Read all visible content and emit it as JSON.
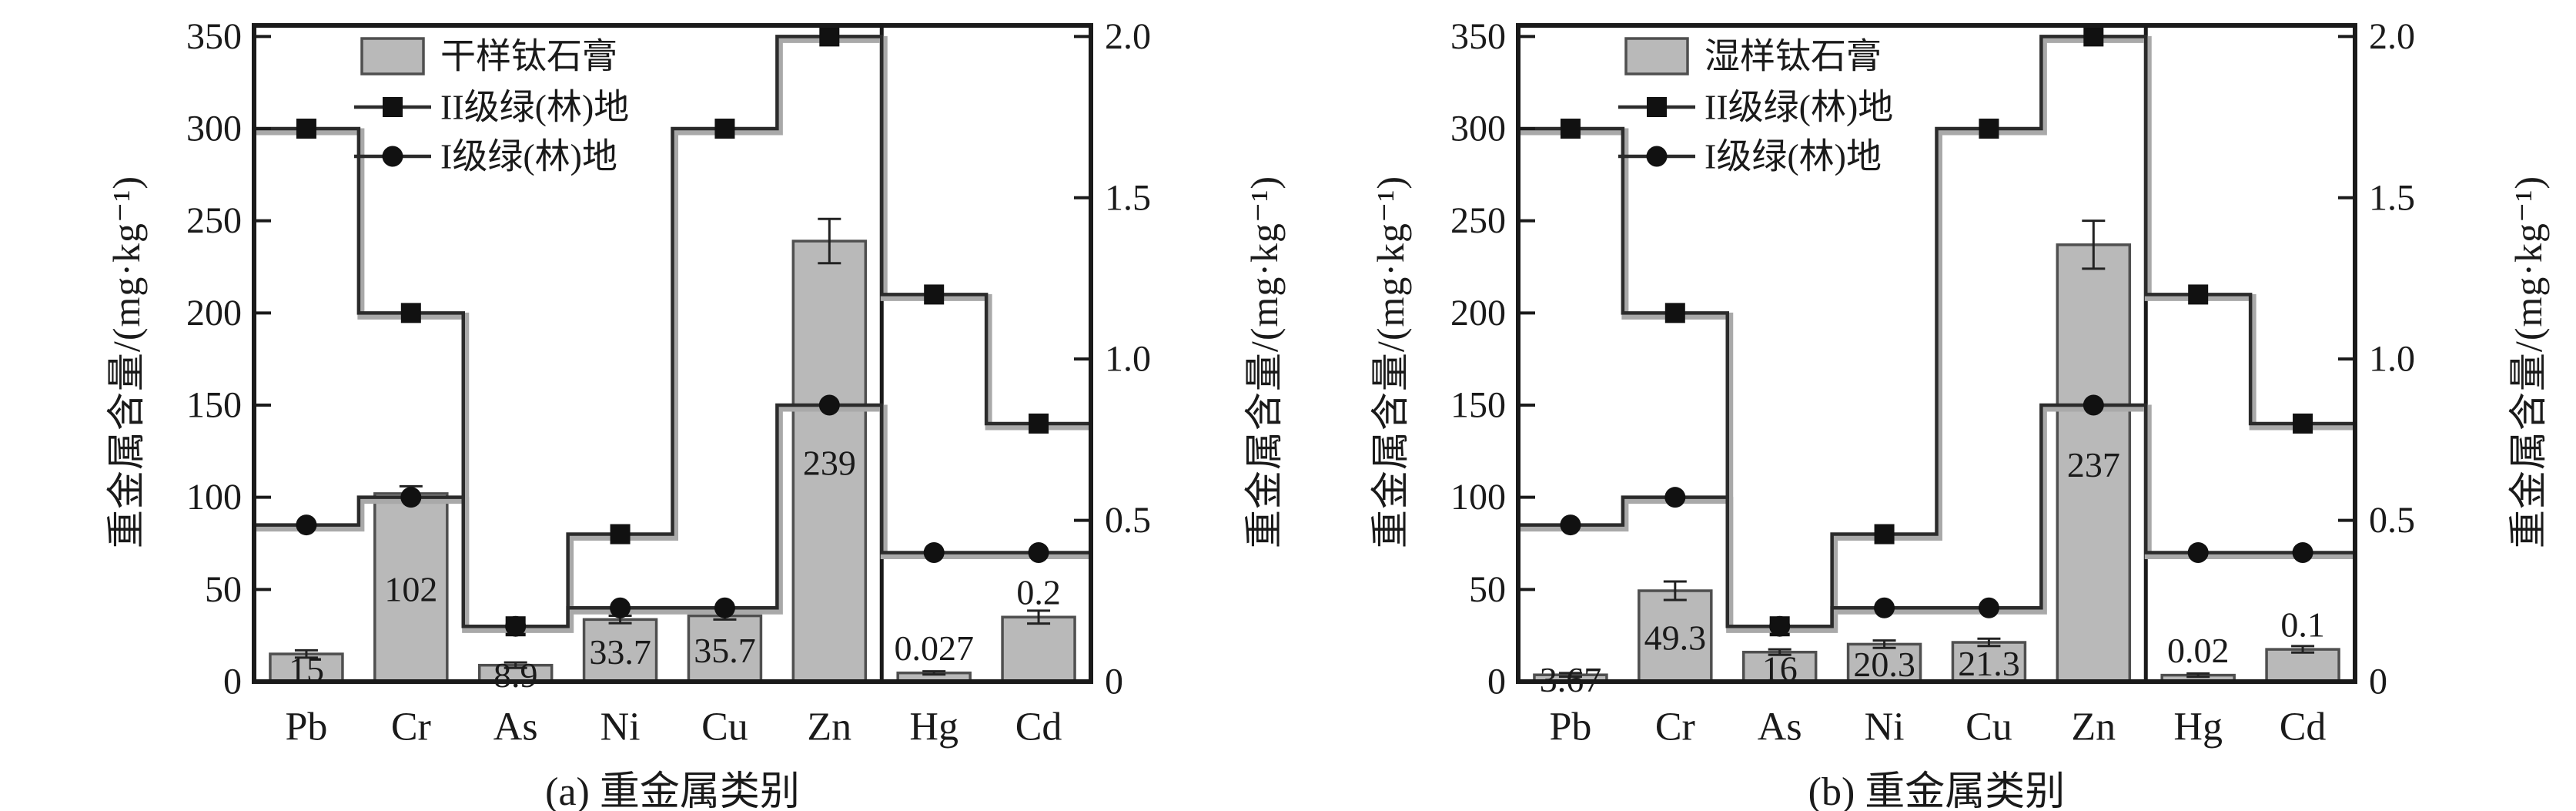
{
  "figure": {
    "background": "#ffffff",
    "ink_color": "#1a1a1a",
    "bar_fill": "#b9b9b9",
    "bar_edge": "#4f4f4f",
    "step_line_color": "#2b2b2b",
    "step_line_halo": "#a9a9a9",
    "marker_color": "#111111",
    "left_ticks": [
      "0",
      "50",
      "100",
      "150",
      "200",
      "250",
      "300",
      "350"
    ],
    "right_ticks": [
      "0",
      "0.5",
      "1.0",
      "1.5",
      "2.0"
    ],
    "right_tick_values": [
      0,
      0.5,
      1.0,
      1.5,
      2.0
    ]
  },
  "chart_data": [
    {
      "panel": "a",
      "type": "bar",
      "caption": "(a) 重金属类别",
      "xlabel": "重金属类别",
      "ylabel_left": "重金属含量/(mg·kg⁻¹)",
      "ylabel_right": "重金属含量/(mg·kg⁻¹)",
      "ylim_left": [
        0,
        350
      ],
      "ylim_right": [
        0,
        2.0
      ],
      "grid": false,
      "legend_position": "top-left",
      "categories": [
        "Pb",
        "Cr",
        "As",
        "Ni",
        "Cu",
        "Zn",
        "Hg",
        "Cd"
      ],
      "right_axis_categories": [
        "Hg",
        "Cd"
      ],
      "bars": {
        "name": "干样钛石膏",
        "values": [
          15,
          102,
          8.9,
          33.7,
          35.7,
          239,
          0.027,
          0.2
        ],
        "labels": [
          "15",
          "102",
          "8.9",
          "33.7",
          "35.7",
          "239",
          "0.027",
          "0.2"
        ],
        "errors": [
          2,
          4,
          1.5,
          2,
          2,
          12,
          0.005,
          0.02
        ]
      },
      "series": [
        {
          "name": "II级绿(林)地",
          "marker": "square",
          "values": [
            300,
            200,
            30,
            80,
            300,
            350,
            1.2,
            0.8
          ]
        },
        {
          "name": "I级绿(林)地",
          "marker": "circle",
          "values": [
            85,
            100,
            30,
            40,
            40,
            150,
            0.4,
            0.4
          ]
        }
      ],
      "legend": [
        "干样钛石膏",
        "II级绿(林)地",
        "I级绿(林)地"
      ]
    },
    {
      "panel": "b",
      "type": "bar",
      "caption": "(b) 重金属类别",
      "xlabel": "重金属类别",
      "ylabel_left": "重金属含量/(mg·kg⁻¹)",
      "ylabel_right": "重金属含量/(mg·kg⁻¹)",
      "ylim_left": [
        0,
        350
      ],
      "ylim_right": [
        0,
        2.0
      ],
      "grid": false,
      "legend_position": "top-left",
      "categories": [
        "Pb",
        "Cr",
        "As",
        "Ni",
        "Cu",
        "Zn",
        "Hg",
        "Cd"
      ],
      "right_axis_categories": [
        "Hg",
        "Cd"
      ],
      "bars": {
        "name": "湿样钛石膏",
        "values": [
          3.67,
          49.3,
          16,
          20.3,
          21.3,
          237,
          0.02,
          0.1
        ],
        "labels": [
          "3.67",
          "49.3",
          "16",
          "20.3",
          "21.3",
          "237",
          "0.02",
          "0.1"
        ],
        "errors": [
          1,
          5,
          1.5,
          2,
          2,
          13,
          0.005,
          0.01
        ]
      },
      "series": [
        {
          "name": "II级绿(林)地",
          "marker": "square",
          "values": [
            300,
            200,
            30,
            80,
            300,
            350,
            1.2,
            0.8
          ]
        },
        {
          "name": "I级绿(林)地",
          "marker": "circle",
          "values": [
            85,
            100,
            30,
            40,
            40,
            150,
            0.4,
            0.4
          ]
        }
      ],
      "legend": [
        "湿样钛石膏",
        "II级绿(林)地",
        "I级绿(林)地"
      ]
    }
  ]
}
